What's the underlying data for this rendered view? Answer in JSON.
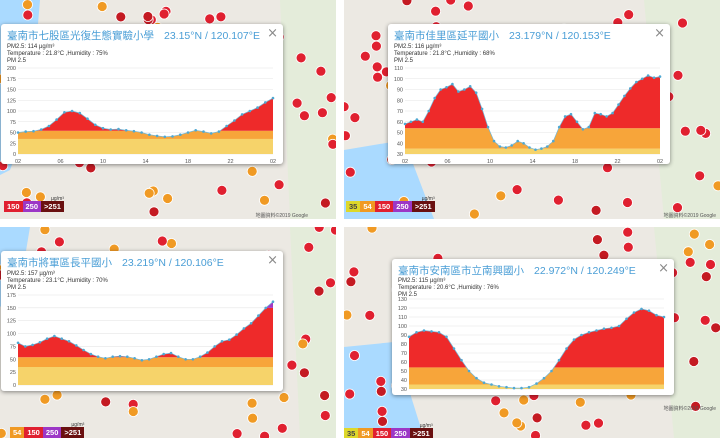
{
  "legend_colors": {
    "150": "#e02030",
    "250": "#9c37c6",
    ">251": "#6a1010",
    "54": "#f09a24",
    "35": "#ddd82a"
  },
  "panels": [
    {
      "title": "臺南市七股區光復生態實驗小學",
      "coord": "23.15°N / 120.107°E",
      "pm": "PM2.5: 114 µg/m³",
      "weather": "Temperature : 21.8°C ,Humidity : 75%",
      "series_label": "PM 2.5",
      "close": "×",
      "legend": [
        "150",
        "250",
        ">251"
      ],
      "legend_unit": "µg/m³",
      "copyright": "地圖資料©2019 Google"
    },
    {
      "title": "臺南市佳里區延平國小",
      "coord": "23.179°N / 120.153°E",
      "pm": "PM2.5: 116 µg/m³",
      "weather": "Temperature : 21.8°C ,Humidity : 68%",
      "series_label": "PM 2.5",
      "close": "×",
      "legend": [
        "35",
        "54",
        "150",
        "250",
        ">251"
      ],
      "legend_unit": "µg/m³",
      "copyright": "地圖資料©2019 Google"
    },
    {
      "title": "臺南市將軍區長平國小",
      "coord": "23.219°N / 120.106°E",
      "pm": "PM2.5: 157 µg/m³",
      "weather": "Temperature : 23.1°C ,Humidity : 70%",
      "series_label": "PM 2.5",
      "close": "×",
      "legend": [
        "54",
        "150",
        "250",
        ">251"
      ],
      "legend_unit": "µg/m³",
      "copyright": ""
    },
    {
      "title": "臺南市安南區市立南興國小",
      "coord": "22.972°N / 120.249°E",
      "pm": "PM2.5: 115 µg/m³",
      "weather": "Temperature : 20.6°C ,Humidity : 76%",
      "series_label": "PM 2.5",
      "close": "×",
      "legend": [
        "35",
        "54",
        "150",
        "250",
        ">251"
      ],
      "legend_unit": "µg/m³",
      "copyright": "地圖資料©2019 Google"
    }
  ],
  "chart_data": [
    {
      "type": "area",
      "title": "PM 2.5",
      "x_ticks": [
        "02",
        "06",
        "10",
        "14",
        "18",
        "22",
        "02"
      ],
      "y_ticks": [
        0,
        25,
        50,
        75,
        100,
        125,
        150,
        175,
        200
      ],
      "ylim": [
        0,
        200
      ],
      "values": [
        50,
        52,
        53,
        57,
        65,
        80,
        97,
        100,
        95,
        82,
        68,
        60,
        57,
        58,
        55,
        53,
        50,
        45,
        42,
        40,
        41,
        45,
        50,
        55,
        52,
        48,
        52,
        65,
        78,
        92,
        100,
        108,
        120,
        130
      ]
    },
    {
      "type": "area",
      "title": "PM 2.5",
      "x_ticks": [
        "02",
        "06",
        "10",
        "14",
        "18",
        "22",
        "02"
      ],
      "y_ticks": [
        30,
        40,
        50,
        60,
        70,
        80,
        90,
        100,
        110
      ],
      "ylim": [
        30,
        110
      ],
      "values": [
        58,
        60,
        62,
        60,
        70,
        82,
        90,
        92,
        95,
        88,
        90,
        93,
        87,
        72,
        55,
        42,
        37,
        36,
        38,
        42,
        40,
        36,
        34,
        35,
        37,
        42,
        55,
        65,
        67,
        60,
        53,
        55,
        68,
        67,
        65,
        68,
        76,
        84,
        91,
        97,
        100,
        103,
        101,
        102
      ]
    },
    {
      "type": "area",
      "title": "PM 2.5",
      "x_ticks": [],
      "y_ticks": [
        0,
        25,
        50,
        75,
        100,
        125,
        150,
        175
      ],
      "ylim": [
        0,
        175
      ],
      "values": [
        82,
        75,
        78,
        83,
        90,
        95,
        90,
        85,
        77,
        68,
        60,
        55,
        52,
        55,
        56,
        55,
        52,
        48,
        50,
        55,
        60,
        62,
        55,
        50,
        50,
        55,
        63,
        75,
        85,
        88,
        98,
        110,
        120,
        135,
        150,
        162
      ]
    },
    {
      "type": "area",
      "title": "PM 2.5",
      "x_ticks": [],
      "y_ticks": [
        30,
        40,
        50,
        60,
        70,
        80,
        90,
        100,
        110,
        120,
        130
      ],
      "ylim": [
        30,
        130
      ],
      "values": [
        88,
        93,
        95,
        94,
        93,
        88,
        75,
        62,
        50,
        42,
        37,
        35,
        33,
        32,
        31,
        31,
        32,
        36,
        42,
        50,
        62,
        75,
        85,
        90,
        93,
        95,
        97,
        98,
        100,
        108,
        115,
        119,
        117,
        112,
        110
      ]
    }
  ]
}
